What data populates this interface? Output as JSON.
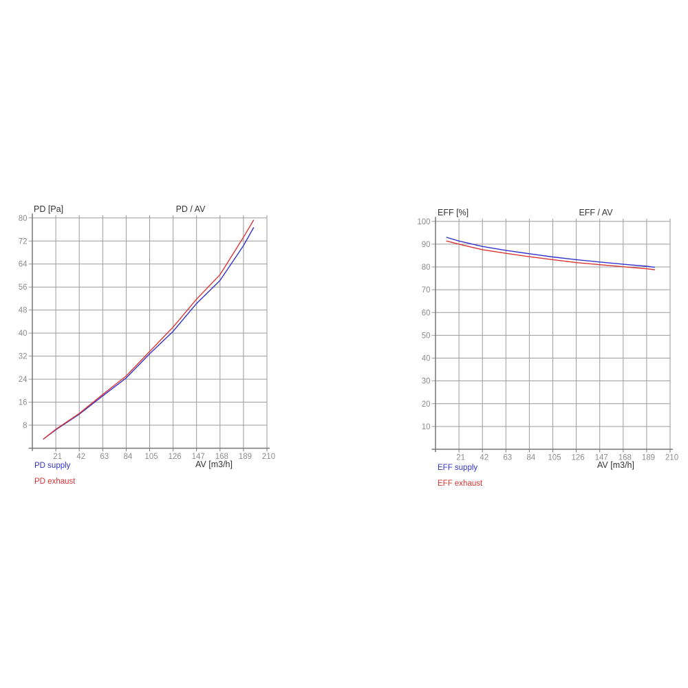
{
  "page": {
    "background": "#ffffff"
  },
  "colors": {
    "grid": "#9a9a9a",
    "axis": "#767676",
    "tick_label": "#8c8c8c",
    "text": "#333333",
    "supply": "#3333cc",
    "exhaust": "#dd3333"
  },
  "chart_data": [
    {
      "type": "line",
      "title": "PD / AV",
      "ylabel": "PD [Pa]",
      "xlabel": "AV [m3/h]",
      "xlim": [
        0,
        210
      ],
      "ylim": [
        0,
        80
      ],
      "x_ticks": [
        21,
        42,
        63,
        84,
        105,
        126,
        147,
        168,
        189,
        210
      ],
      "y_ticks": [
        8,
        16,
        24,
        32,
        40,
        48,
        56,
        64,
        72,
        80
      ],
      "grid": true,
      "legend_position": "bottom-left",
      "series": [
        {
          "name": "PD supply",
          "color": "#3333cc",
          "x": [
            10,
            21,
            42,
            63,
            84,
            105,
            126,
            147,
            168,
            189,
            198
          ],
          "y": [
            3.2,
            6.4,
            11.8,
            18.2,
            24.4,
            32.8,
            40.6,
            50.3,
            58.3,
            70.4,
            76.6
          ]
        },
        {
          "name": "PD exhaust",
          "color": "#dd3333",
          "x": [
            10,
            21,
            42,
            63,
            84,
            105,
            126,
            147,
            168,
            189,
            198
          ],
          "y": [
            3.2,
            6.6,
            12.1,
            18.7,
            25.1,
            33.6,
            42.1,
            51.8,
            60.3,
            73.3,
            79.2
          ]
        }
      ]
    },
    {
      "type": "line",
      "title": "EFF / AV",
      "ylabel": "EFF [%]",
      "xlabel": "AV [m3/h]",
      "xlim": [
        0,
        210
      ],
      "ylim": [
        0,
        100
      ],
      "x_ticks": [
        21,
        42,
        63,
        84,
        105,
        126,
        147,
        168,
        189,
        210
      ],
      "y_ticks": [
        10,
        20,
        30,
        40,
        50,
        60,
        70,
        80,
        90,
        100
      ],
      "grid": true,
      "legend_position": "bottom-left",
      "series": [
        {
          "name": "EFF supply",
          "color": "#3333cc",
          "x": [
            10,
            21,
            42,
            63,
            84,
            105,
            126,
            147,
            168,
            189,
            196
          ],
          "y": [
            93.0,
            91.4,
            89.0,
            87.3,
            85.8,
            84.4,
            83.2,
            82.2,
            81.2,
            80.3,
            79.9
          ]
        },
        {
          "name": "EFF exhaust",
          "color": "#dd3333",
          "x": [
            10,
            21,
            42,
            63,
            84,
            105,
            126,
            147,
            168,
            189,
            196
          ],
          "y": [
            91.4,
            90.0,
            87.6,
            86.0,
            84.5,
            83.2,
            81.9,
            81.0,
            80.1,
            79.2,
            78.8
          ]
        }
      ]
    }
  ]
}
